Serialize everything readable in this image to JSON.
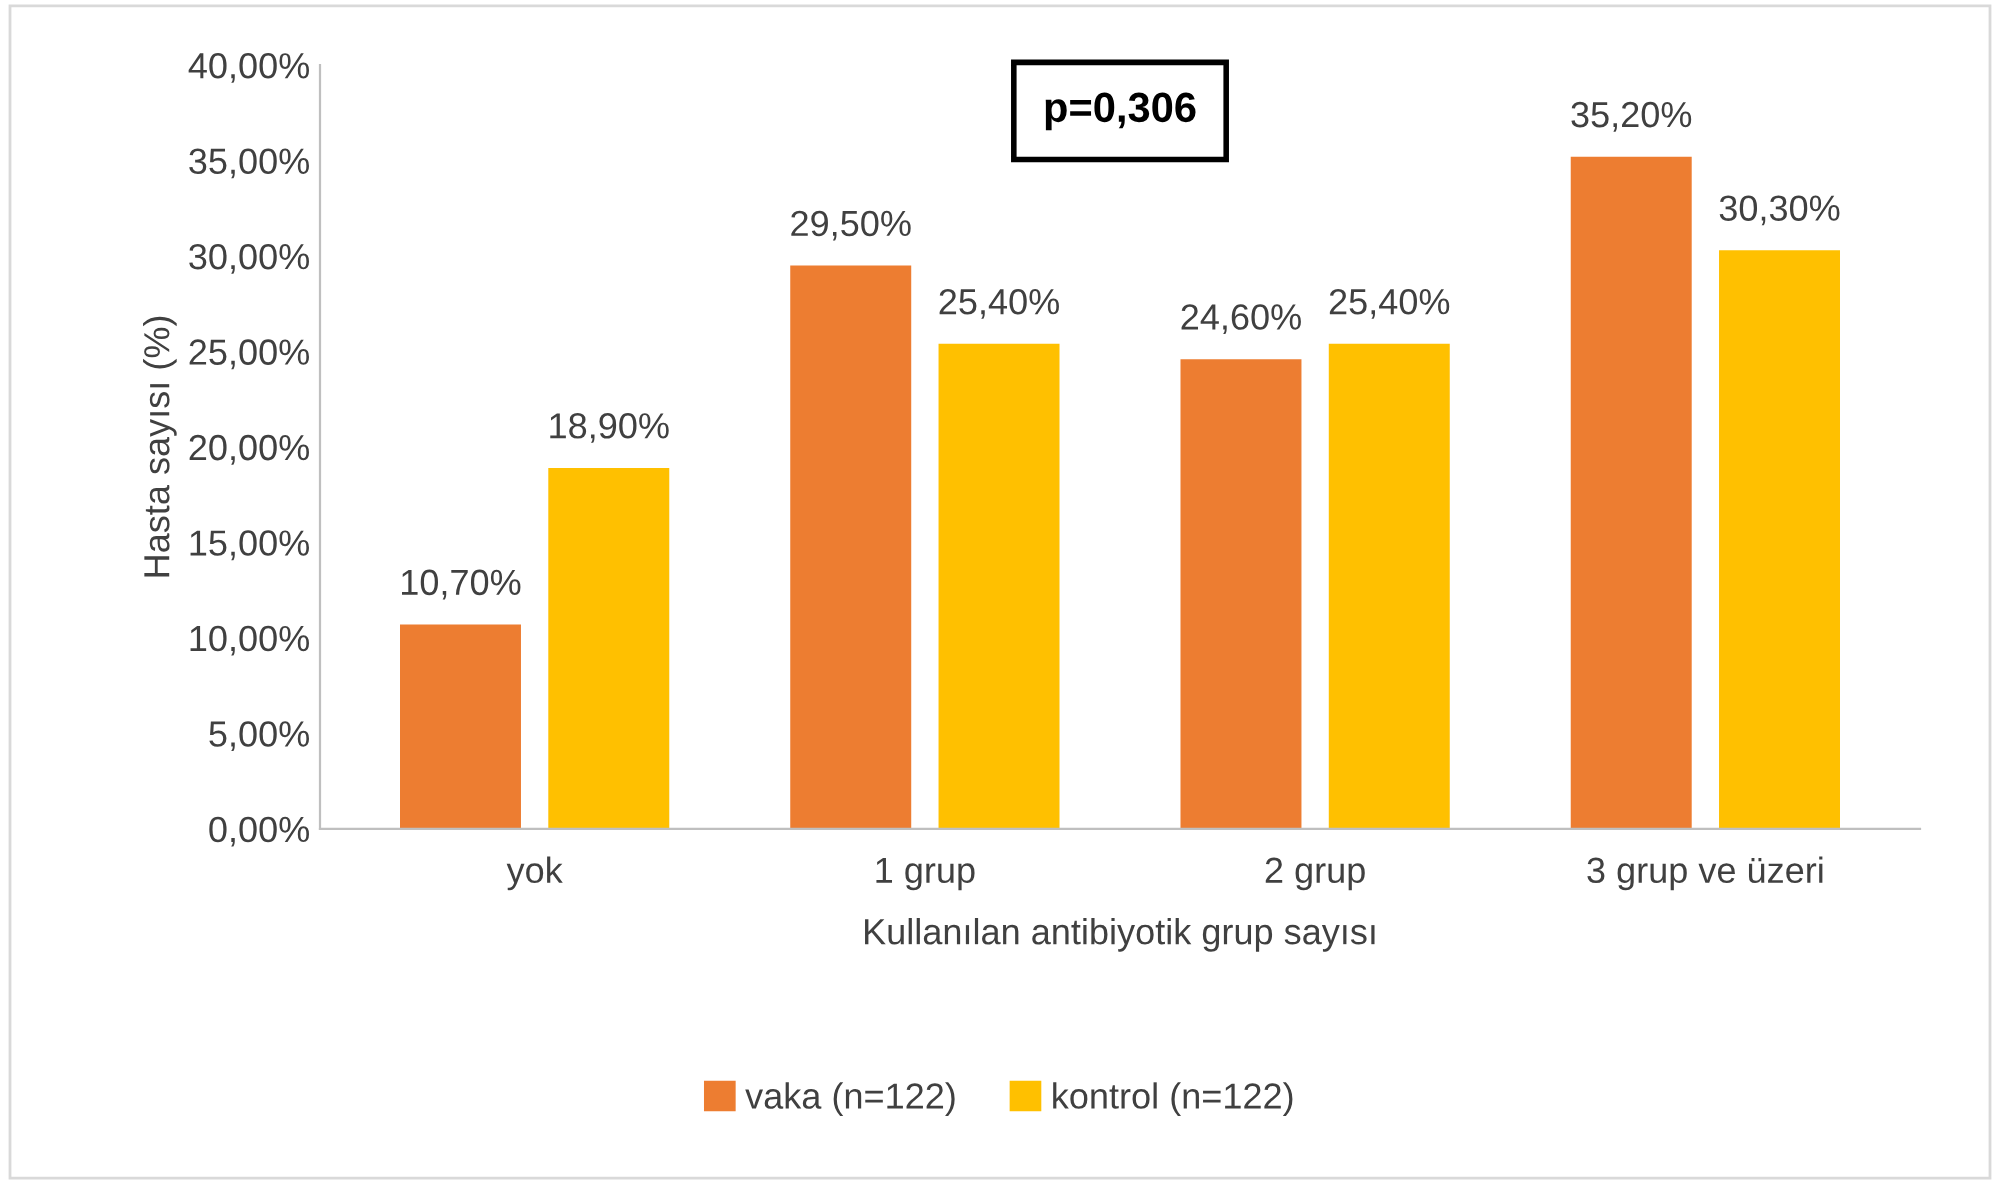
{
  "chart_data": {
    "type": "bar",
    "xlabel": "Kullanılan antibiyotik grup sayısı",
    "ylabel": "Hasta sayısı (%)",
    "categories": [
      "yok",
      "1 grup",
      "2 grup",
      "3 grup ve üzeri"
    ],
    "series": [
      {
        "name": "vaka (n=122)",
        "color": "#ed7d31",
        "values": [
          10.7,
          29.5,
          24.6,
          35.2
        ],
        "value_labels": [
          "10,70%",
          "29,50%",
          "24,60%",
          "35,20%"
        ]
      },
      {
        "name": "kontrol (n=122)",
        "color": "#ffc000",
        "values": [
          18.9,
          25.4,
          25.4,
          30.3
        ],
        "value_labels": [
          "18,90%",
          "25,40%",
          "25,40%",
          "30,30%"
        ]
      }
    ],
    "ylim": [
      0,
      40
    ],
    "yticks": [
      {
        "value": 0,
        "label": "0,00%"
      },
      {
        "value": 5,
        "label": "5,00%"
      },
      {
        "value": 10,
        "label": "10,00%"
      },
      {
        "value": 15,
        "label": "15,00%"
      },
      {
        "value": 20,
        "label": "20,00%"
      },
      {
        "value": 25,
        "label": "25,00%"
      },
      {
        "value": 30,
        "label": "30,00%"
      },
      {
        "value": 35,
        "label": "35,00%"
      },
      {
        "value": 40,
        "label": "40,00%"
      }
    ],
    "annotations": [
      "p=0,306"
    ],
    "grid": false,
    "legend": "bottom"
  }
}
